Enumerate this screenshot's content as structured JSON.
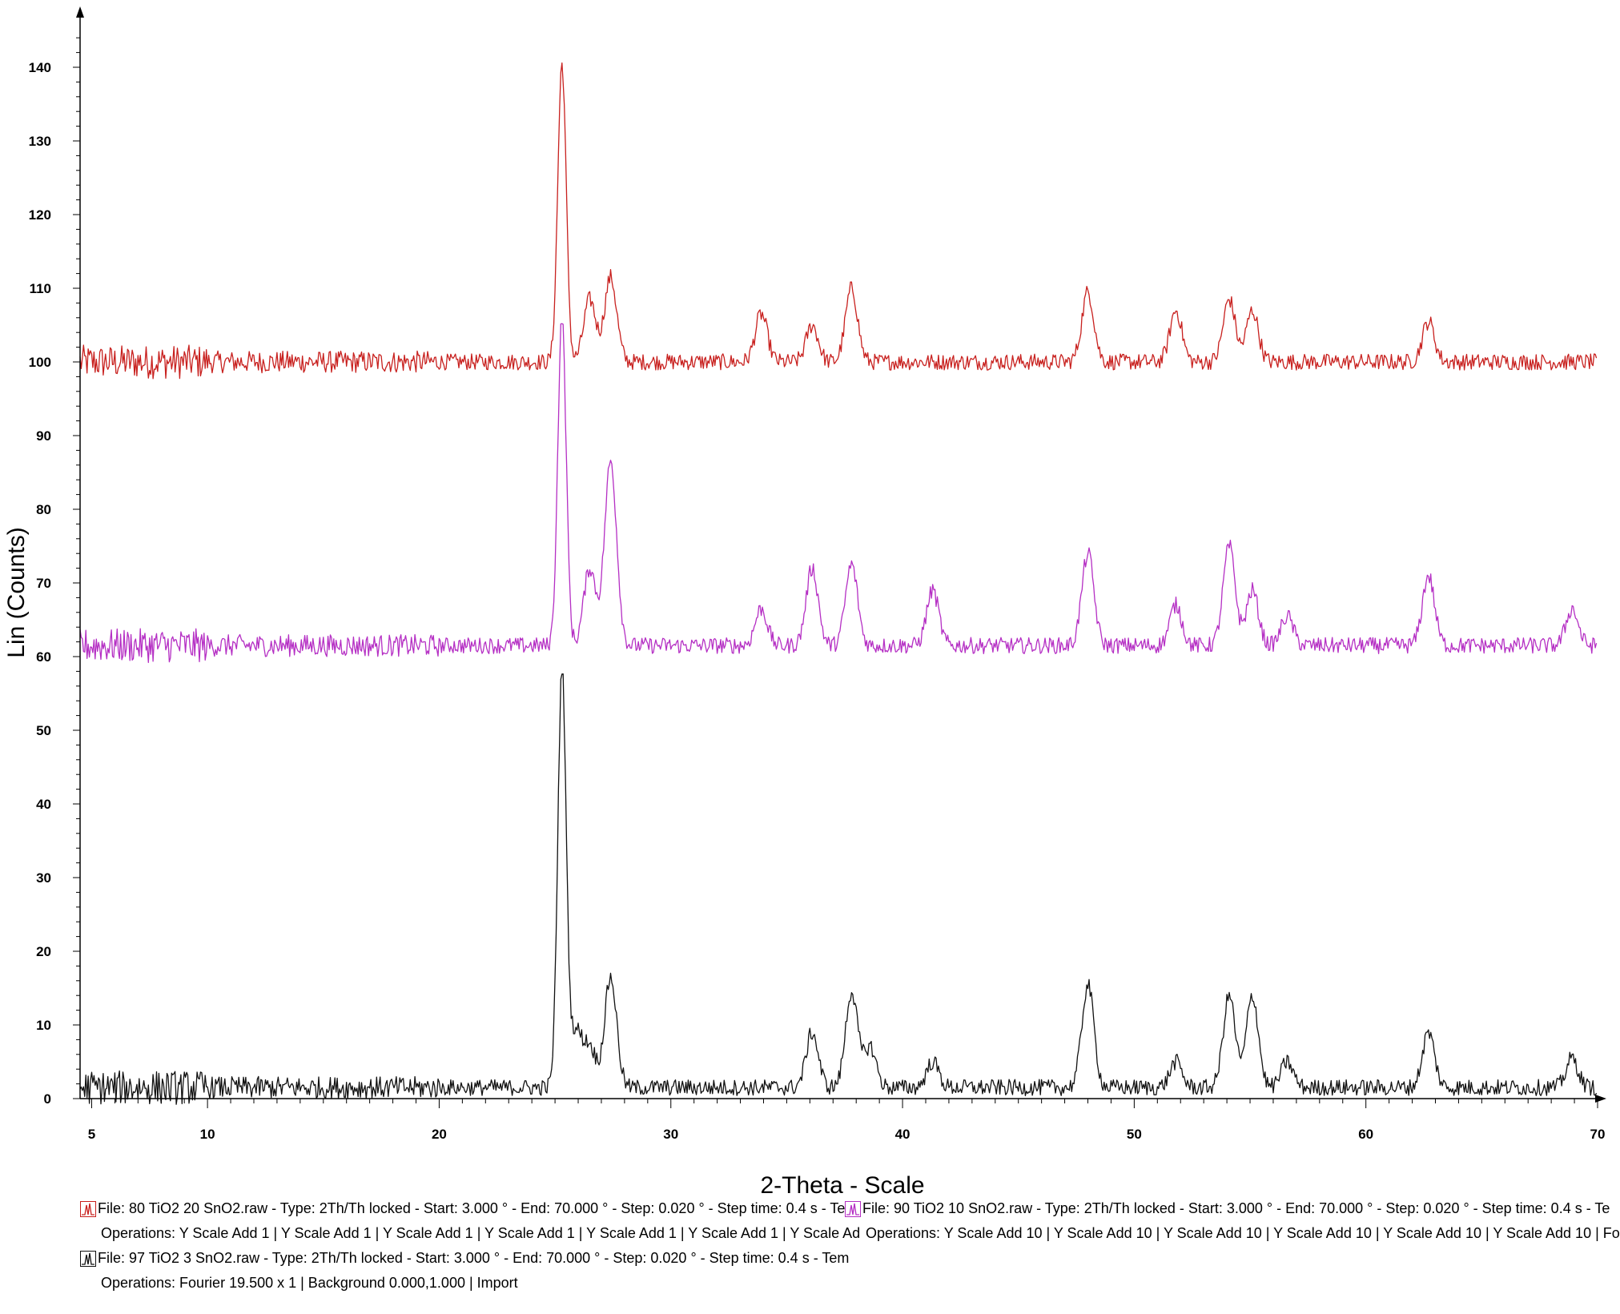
{
  "chart_data": {
    "type": "line",
    "title": "",
    "xlabel": "2-Theta - Scale",
    "ylabel": "Lin (Counts)",
    "xlim": [
      4.5,
      70
    ],
    "ylim": [
      0,
      145
    ],
    "x_ticks": [
      "5",
      "10",
      "20",
      "30",
      "40",
      "50",
      "60",
      "70"
    ],
    "y_ticks": [
      "0",
      "10",
      "20",
      "30",
      "40",
      "50",
      "60",
      "70",
      "80",
      "90",
      "100",
      "110",
      "120",
      "130",
      "140"
    ],
    "grid": false,
    "legend_position": "bottom",
    "series": [
      {
        "name": "File: 80 TiO2 20 SnO2.raw",
        "color": "#c8201e",
        "baseline": 100,
        "peaks": [
          [
            25.3,
            140.5
          ],
          [
            26.5,
            108.5
          ],
          [
            27.4,
            111.5
          ],
          [
            33.9,
            106.5
          ],
          [
            36.1,
            105
          ],
          [
            37.8,
            110
          ],
          [
            48.0,
            109.5
          ],
          [
            51.8,
            107
          ],
          [
            54.1,
            108.5
          ],
          [
            55.1,
            107
          ],
          [
            62.7,
            105.5
          ]
        ]
      },
      {
        "name": "File: 90 TiO2 10 SnO2.raw",
        "color": "#b52fc4",
        "baseline": 61.5,
        "peaks": [
          [
            25.3,
            106
          ],
          [
            26.5,
            72
          ],
          [
            27.4,
            86.5
          ],
          [
            33.9,
            66.5
          ],
          [
            36.1,
            72
          ],
          [
            37.8,
            72.5
          ],
          [
            41.3,
            69
          ],
          [
            48.0,
            74
          ],
          [
            51.8,
            67
          ],
          [
            54.1,
            75
          ],
          [
            55.1,
            69
          ],
          [
            56.6,
            65.5
          ],
          [
            62.7,
            71
          ],
          [
            68.9,
            66.5
          ]
        ]
      },
      {
        "name": "File: 97 TiO2 3 SnO2.raw",
        "color": "#111111",
        "baseline": 1.5,
        "peaks": [
          [
            25.3,
            58
          ],
          [
            25.9,
            9
          ],
          [
            26.5,
            7
          ],
          [
            27.4,
            16.5
          ],
          [
            36.1,
            9
          ],
          [
            37.8,
            14.5
          ],
          [
            38.6,
            7
          ],
          [
            41.3,
            5
          ],
          [
            48.0,
            15.5
          ],
          [
            51.8,
            5
          ],
          [
            54.1,
            14
          ],
          [
            55.1,
            14
          ],
          [
            56.6,
            5
          ],
          [
            62.7,
            9
          ],
          [
            68.9,
            5.5
          ]
        ]
      }
    ]
  },
  "legend": {
    "entries": [
      {
        "icon": "red-peak-icon",
        "color": "#c8201e",
        "line1": "File: 80 TiO2 20 SnO2.raw - Type: 2Th/Th locked - Start: 3.000 ° - End: 70.000 ° - Step: 0.020 ° - Step time: 0.4 s - Te",
        "line2": "Operations: Y Scale Add 1 | Y Scale Add 1 | Y Scale Add 1 | Y Scale Add 1 | Y Scale Add 1 | Y Scale Add 1 | Y Scale Ad"
      },
      {
        "icon": "magenta-peak-icon",
        "color": "#b52fc4",
        "line1": "File: 90 TiO2 10 SnO2.raw - Type: 2Th/Th locked - Start: 3.000 ° - End: 70.000 ° - Step: 0.020 ° - Step time: 0.4 s - Te",
        "line2": "Operations: Y Scale Add 10 | Y Scale Add 10 | Y Scale Add 10 | Y Scale Add 10 | Y Scale Add 10 | Y Scale Add 10 | Fo"
      },
      {
        "icon": "black-peak-icon",
        "color": "#111111",
        "line1": "File: 97 TiO2 3 SnO2.raw - Type: 2Th/Th locked - Start: 3.000 ° - End: 70.000 ° - Step: 0.020 ° - Step time: 0.4 s - Tem",
        "line2": "Operations: Fourier 19.500 x 1 | Background 0.000,1.000 | Import"
      }
    ]
  }
}
